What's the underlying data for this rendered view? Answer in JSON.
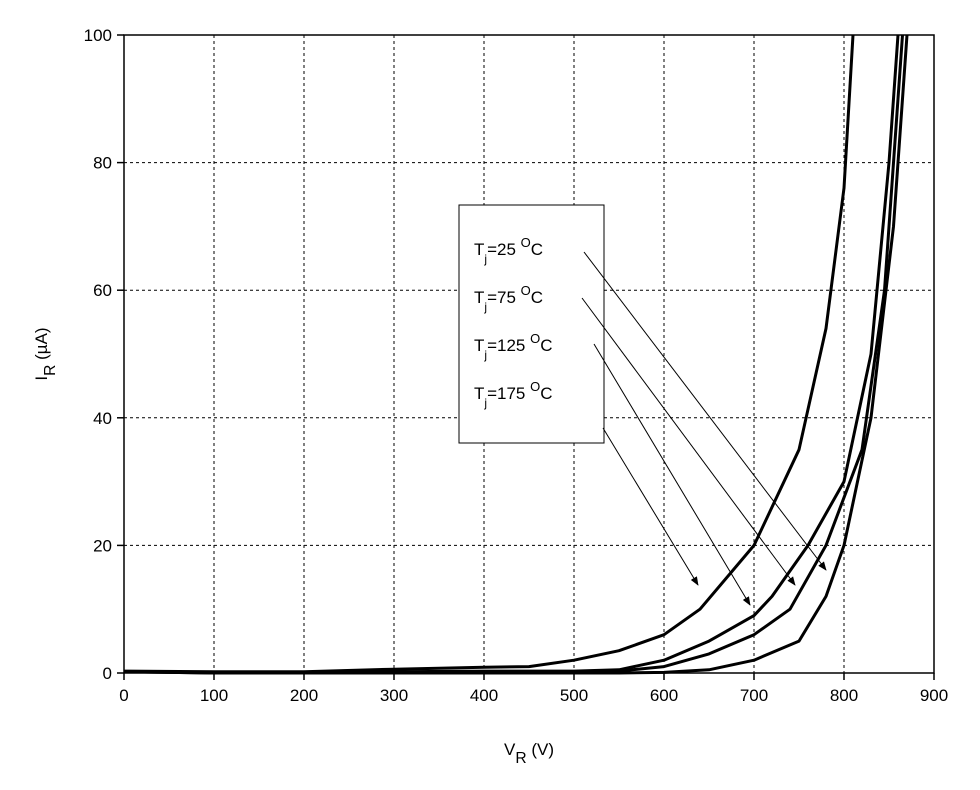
{
  "chart_data": {
    "type": "line",
    "x_label": [
      "V",
      "R",
      " (V)"
    ],
    "y_label": [
      "I",
      "R",
      " (µA)"
    ],
    "xlim": [
      0,
      900
    ],
    "xticks": [
      0,
      100,
      200,
      300,
      400,
      500,
      600,
      700,
      800,
      900
    ],
    "ylim": [
      0,
      100
    ],
    "yticks": [
      0,
      20,
      40,
      60,
      80,
      100
    ],
    "grid": true,
    "series": [
      {
        "label": [
          "T",
          "j",
          "=25 ",
          "O",
          "C"
        ],
        "color": "#000000",
        "x": [
          0,
          100,
          200,
          300,
          400,
          500,
          550,
          600,
          650,
          700,
          750,
          780,
          800,
          830,
          855,
          870
        ],
        "values": [
          0.2,
          0,
          0,
          0,
          0,
          0,
          0,
          0.1,
          0.5,
          2,
          5,
          12,
          20,
          40,
          70,
          100
        ]
      },
      {
        "label": [
          "T",
          "j",
          "=75 ",
          "O",
          "C"
        ],
        "color": "#000000",
        "x": [
          0,
          100,
          200,
          300,
          400,
          500,
          550,
          600,
          650,
          700,
          740,
          780,
          820,
          845,
          865
        ],
        "values": [
          0.2,
          0,
          0,
          0.1,
          0.2,
          0.2,
          0.3,
          1,
          3,
          6,
          10,
          20,
          35,
          60,
          100
        ]
      },
      {
        "label": [
          "T",
          "j",
          "=125 ",
          "O",
          "C"
        ],
        "color": "#000000",
        "x": [
          0,
          100,
          200,
          300,
          400,
          500,
          550,
          600,
          650,
          700,
          720,
          760,
          800,
          830,
          850,
          860
        ],
        "values": [
          0.2,
          0.1,
          0.1,
          0.2,
          0.3,
          0.3,
          0.5,
          2,
          5,
          9,
          12,
          20,
          30,
          50,
          80,
          100
        ]
      },
      {
        "label": [
          "T",
          "j",
          "=175 ",
          "O",
          "C"
        ],
        "color": "#000000",
        "x": [
          0,
          100,
          200,
          300,
          400,
          450,
          500,
          550,
          600,
          640,
          700,
          750,
          780,
          800,
          810
        ],
        "values": [
          0.3,
          0.2,
          0.2,
          0.6,
          0.9,
          1,
          2,
          3.5,
          6,
          10,
          20,
          35,
          54,
          76,
          100
        ]
      }
    ]
  }
}
